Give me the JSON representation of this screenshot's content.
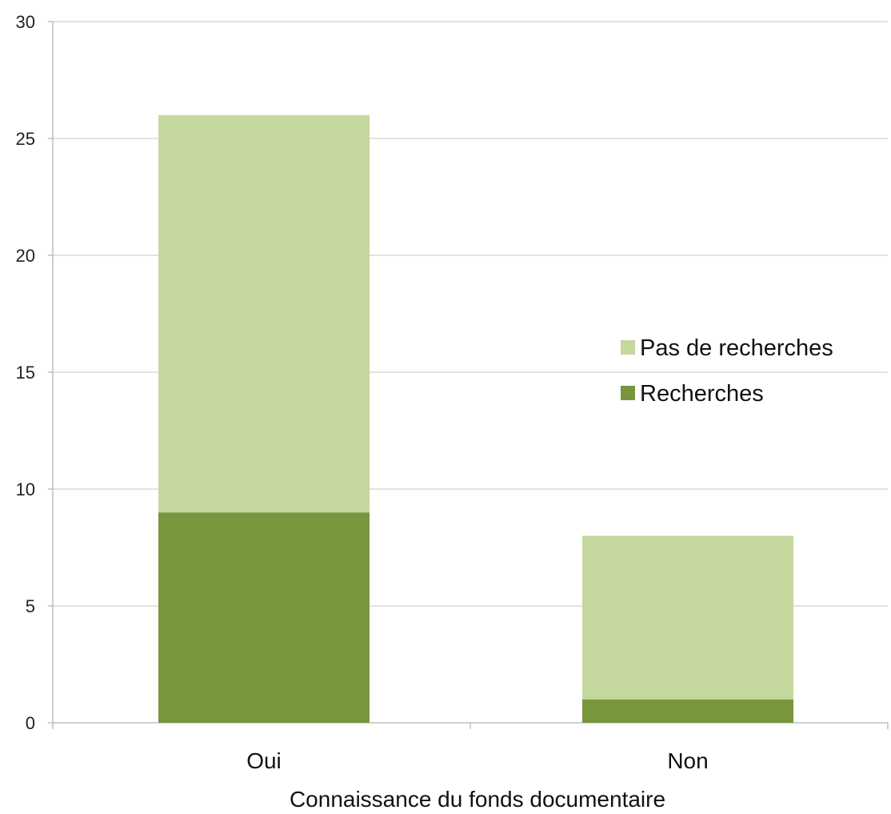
{
  "chart_data": {
    "type": "bar",
    "stacked": true,
    "categories": [
      "Oui",
      "Non"
    ],
    "series": [
      {
        "name": "Recherches",
        "values": [
          9,
          1
        ],
        "color": "#78963c"
      },
      {
        "name": "Pas de recherches",
        "values": [
          17,
          7
        ],
        "color": "#c4d89e"
      }
    ],
    "title": "",
    "xlabel": "Connaissance du fonds documentaire",
    "ylabel": "",
    "ylim": [
      0,
      30
    ],
    "yticks": [
      0,
      5,
      10,
      15,
      20,
      25,
      30
    ],
    "grid": true,
    "legend": {
      "placement": "right",
      "entries": [
        "Pas de recherches",
        "Recherches"
      ]
    },
    "colors": {
      "grid": "#d9d9d9",
      "axis": "#bfbfbf"
    }
  }
}
